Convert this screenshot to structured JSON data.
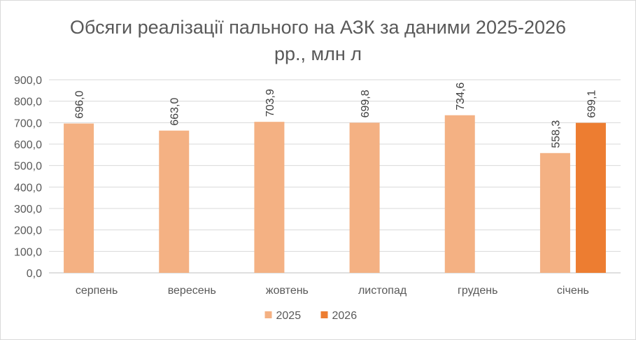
{
  "chart_data": {
    "type": "bar",
    "title_lines": [
      "Обсяги реалізації пального на АЗК за даними 2025-2026",
      "рр., млн л"
    ],
    "categories": [
      "серпень",
      "вересень",
      "жовтень",
      "листопад",
      "грудень",
      "січень"
    ],
    "series": [
      {
        "name": "2025",
        "color": "#f4b183",
        "values": [
          696.0,
          663.0,
          703.9,
          699.8,
          734.6,
          558.3
        ]
      },
      {
        "name": "2026",
        "color": "#ed7d31",
        "values": [
          null,
          null,
          null,
          null,
          null,
          699.1
        ]
      }
    ],
    "data_labels": [
      [
        "696,0",
        "663,0",
        "703,9",
        "699,8",
        "734,6",
        "558,3"
      ],
      [
        null,
        null,
        null,
        null,
        null,
        "699,1"
      ]
    ],
    "y_tick_labels": [
      "0,0",
      "100,0",
      "200,0",
      "300,0",
      "400,0",
      "500,0",
      "600,0",
      "700,0",
      "800,0",
      "900,0"
    ],
    "ylim": [
      0,
      900
    ],
    "y_step": 100,
    "grid": true,
    "legend_position": "bottom"
  }
}
